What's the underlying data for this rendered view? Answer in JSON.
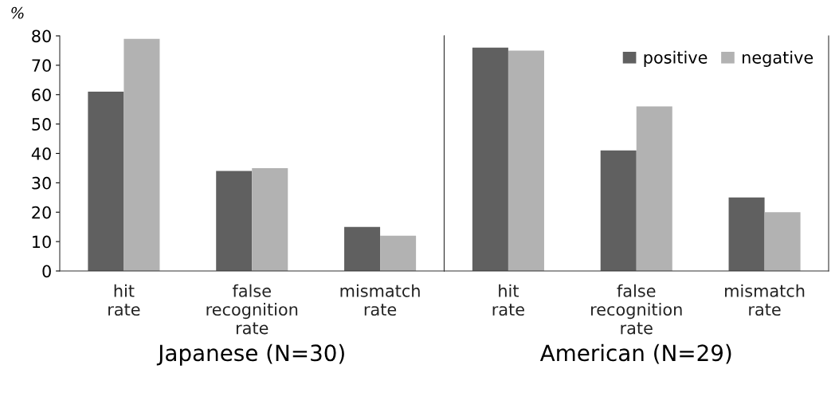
{
  "chart_data": [
    {
      "type": "bar",
      "xlabel": "Japanese (N=30)",
      "ylabel": "%",
      "categories": [
        "hit rate",
        "false recognition rate",
        "mismatch rate"
      ],
      "series": [
        {
          "name": "positive",
          "color": "#606060",
          "values": [
            61,
            34,
            15
          ]
        },
        {
          "name": "negative",
          "color": "#b2b2b2",
          "values": [
            79,
            35,
            12
          ]
        }
      ],
      "ylim": [
        0,
        80
      ],
      "yticks": [
        0,
        10,
        20,
        30,
        40,
        50,
        60,
        70,
        80
      ],
      "legend": "top right",
      "grid": false
    },
    {
      "type": "bar",
      "xlabel": "American (N=29)",
      "categories": [
        "hit rate",
        "false recognition rate",
        "mismatch rate"
      ],
      "series": [
        {
          "color": "#606060",
          "values": [
            76,
            41,
            25
          ]
        },
        {
          "color": "#b2b2b2",
          "values": [
            75,
            56,
            20
          ]
        }
      ],
      "ylim": [
        0,
        80
      ],
      "yticks": [
        0,
        10,
        20,
        30,
        40,
        50,
        60,
        70,
        80
      ],
      "tick_labels": "x",
      "grid": false
    }
  ]
}
